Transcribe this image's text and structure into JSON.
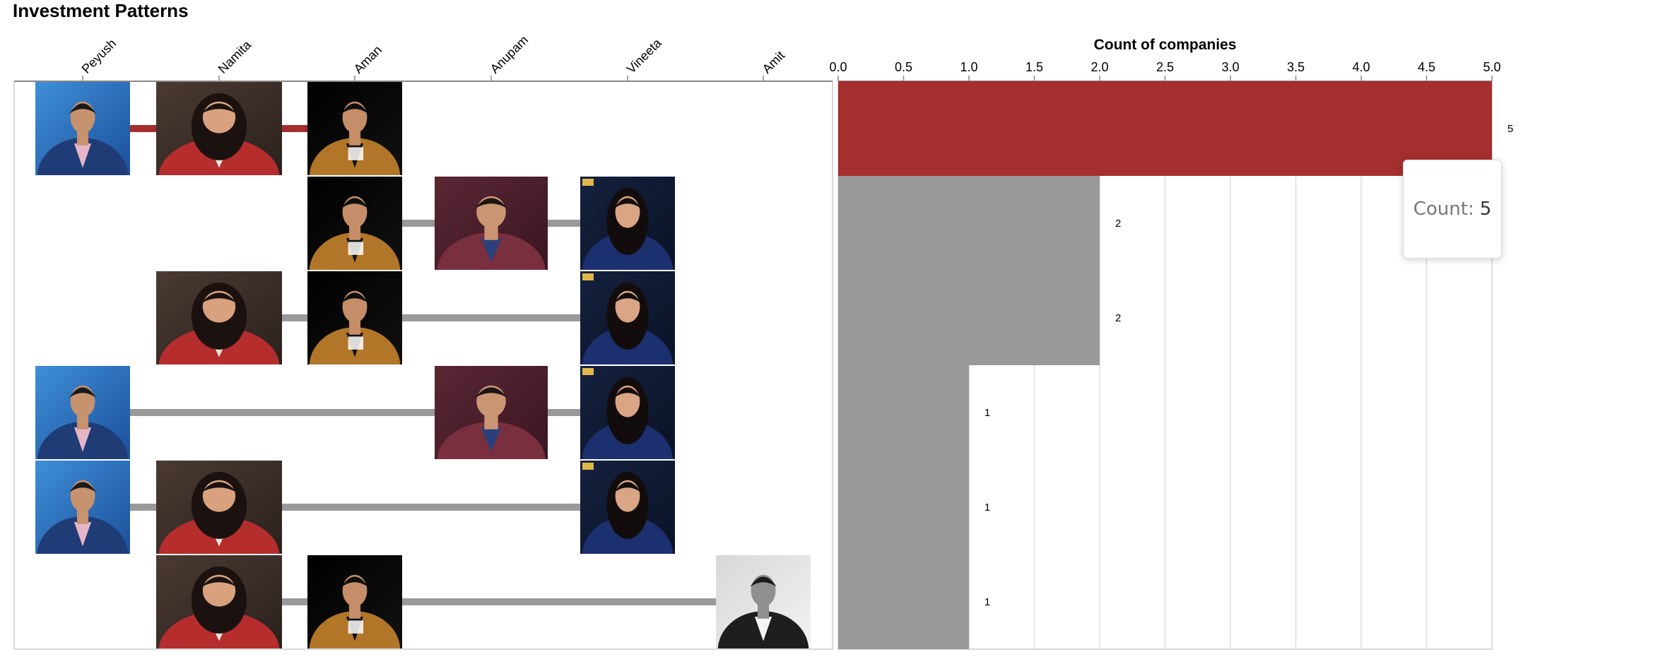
{
  "title": "Investment Patterns",
  "investors": [
    "Peyush",
    "Namita",
    "Aman",
    "Anupam",
    "Vineeta",
    "Amit"
  ],
  "chart_data": {
    "type": "bar",
    "orientation": "horizontal",
    "xlabel": "Count of companies",
    "xlim": [
      0,
      5
    ],
    "x_ticks": [
      "0.0",
      "0.5",
      "1.0",
      "1.5",
      "2.0",
      "2.5",
      "3.0",
      "3.5",
      "4.0",
      "4.5",
      "5.0"
    ],
    "grid": true,
    "highlight_color": "#a52e2e",
    "bar_color": "#999999",
    "rows": [
      {
        "investors": [
          "Peyush",
          "Namita",
          "Aman"
        ],
        "count": 5,
        "label": "5",
        "highlighted": true
      },
      {
        "investors": [
          "Aman",
          "Anupam",
          "Vineeta"
        ],
        "count": 2,
        "label": "2",
        "highlighted": false
      },
      {
        "investors": [
          "Namita",
          "Aman",
          "Vineeta"
        ],
        "count": 2,
        "label": "2",
        "highlighted": false
      },
      {
        "investors": [
          "Peyush",
          "Anupam",
          "Vineeta"
        ],
        "count": 1,
        "label": "1",
        "highlighted": false
      },
      {
        "investors": [
          "Peyush",
          "Namita",
          "Vineeta"
        ],
        "count": 1,
        "label": "1",
        "highlighted": false
      },
      {
        "investors": [
          "Namita",
          "Aman",
          "Amit"
        ],
        "count": 1,
        "label": "1",
        "highlighted": false
      }
    ]
  },
  "tooltip": {
    "label": "Count:",
    "value": "5"
  }
}
